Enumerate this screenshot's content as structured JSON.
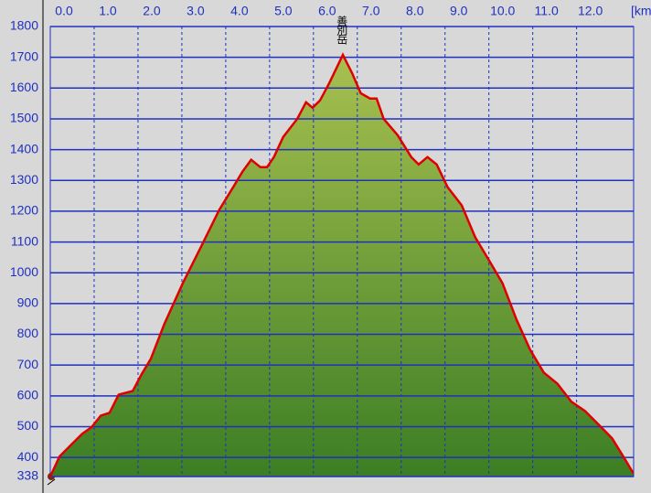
{
  "chart_data": {
    "type": "area",
    "x_label": "[km]",
    "annotation": "善別岳",
    "x": [
      0,
      0.21,
      0.42,
      0.73,
      0.94,
      1.15,
      1.35,
      1.56,
      1.88,
      2.08,
      2.29,
      2.6,
      3.02,
      3.44,
      3.85,
      4.17,
      4.38,
      4.58,
      4.79,
      4.94,
      5.1,
      5.31,
      5.63,
      5.83,
      5.98,
      6.15,
      6.35,
      6.67,
      6.88,
      7.08,
      7.29,
      7.44,
      7.6,
      7.92,
      8.23,
      8.4,
      8.6,
      8.81,
      9.06,
      9.38,
      9.69,
      10.0,
      10.31,
      10.63,
      10.94,
      11.25,
      11.56,
      11.88,
      12.19,
      12.5,
      12.81,
      13.13,
      13.29
    ],
    "series": [
      {
        "name": "elevation",
        "color": "#e00000",
        "values": [
          338,
          403,
          433,
          477,
          498,
          536,
          545,
          604,
          616,
          670,
          720,
          833,
          966,
          1085,
          1204,
          1278,
          1328,
          1367,
          1343,
          1343,
          1376,
          1441,
          1500,
          1554,
          1536,
          1560,
          1613,
          1708,
          1649,
          1583,
          1566,
          1566,
          1500,
          1447,
          1376,
          1352,
          1376,
          1352,
          1278,
          1219,
          1115,
          1041,
          966,
          848,
          750,
          676,
          640,
          581,
          551,
          507,
          462,
          388,
          349
        ]
      }
    ],
    "xlim": [
      0,
      13.3
    ],
    "xticks": [
      {
        "value": 0,
        "label": "0.0"
      },
      {
        "value": 1,
        "label": "1.0"
      },
      {
        "value": 2,
        "label": "2.0"
      },
      {
        "value": 3,
        "label": "3.0"
      },
      {
        "value": 4,
        "label": "4.0"
      },
      {
        "value": 5,
        "label": "5.0"
      },
      {
        "value": 6,
        "label": "6.0"
      },
      {
        "value": 7,
        "label": "7.0"
      },
      {
        "value": 8,
        "label": "8.0"
      },
      {
        "value": 9,
        "label": "9.0"
      },
      {
        "value": 10,
        "label": "10.0"
      },
      {
        "value": 11,
        "label": "11.0"
      },
      {
        "value": 12,
        "label": "12.0"
      }
    ],
    "ylim": [
      338,
      1800
    ],
    "yticks": [
      338,
      400,
      500,
      600,
      700,
      800,
      900,
      1000,
      1100,
      1200,
      1300,
      1400,
      1500,
      1600,
      1700,
      1800
    ],
    "grid": true
  }
}
